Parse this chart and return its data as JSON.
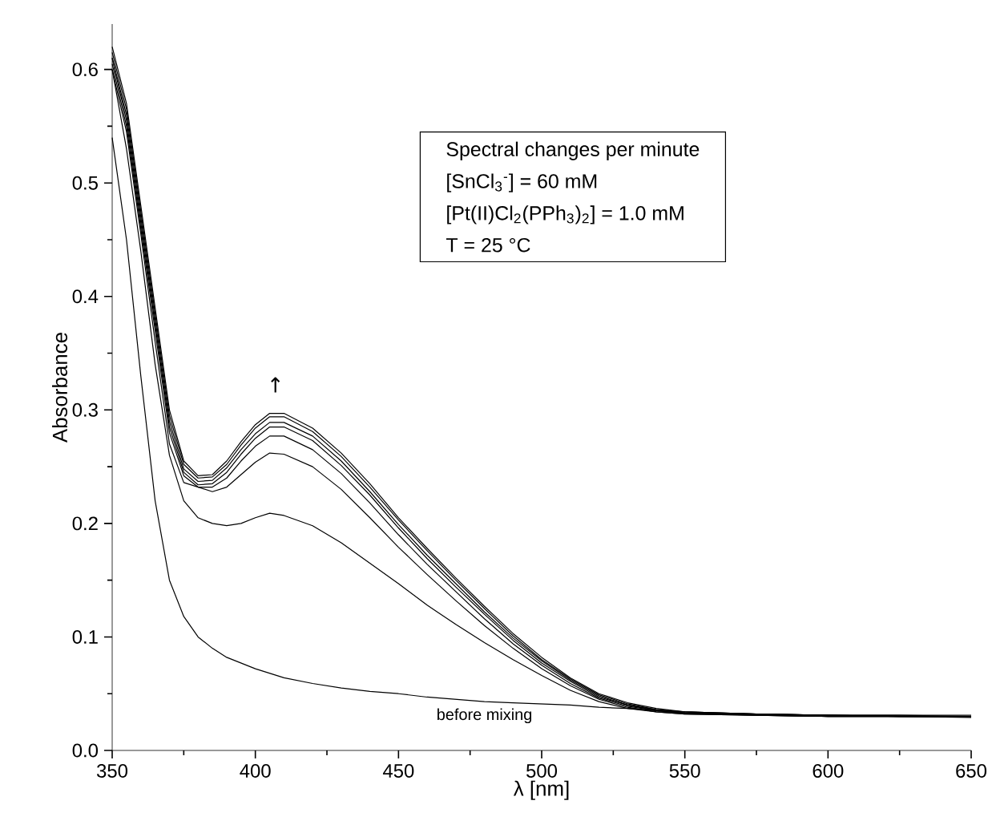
{
  "chart_data": {
    "type": "line",
    "xlabel": "λ [nm]",
    "ylabel": "Absorbance",
    "x": [
      350,
      355,
      360,
      365,
      370,
      375,
      380,
      385,
      390,
      395,
      400,
      405,
      410,
      420,
      430,
      440,
      450,
      460,
      470,
      480,
      490,
      500,
      510,
      520,
      530,
      540,
      550,
      575,
      600,
      625,
      650
    ],
    "series": [
      {
        "color": "#000000",
        "values": [
          0.62,
          0.57,
          0.48,
          0.39,
          0.3,
          0.255,
          0.242,
          0.243,
          0.255,
          0.272,
          0.287,
          0.297,
          0.297,
          0.284,
          0.262,
          0.235,
          0.205,
          0.178,
          0.152,
          0.127,
          0.103,
          0.082,
          0.064,
          0.05,
          0.042,
          0.037,
          0.034,
          0.032,
          0.031,
          0.031,
          0.031
        ]
      },
      {
        "color": "#000000",
        "values": [
          0.615,
          0.565,
          0.475,
          0.385,
          0.295,
          0.252,
          0.24,
          0.241,
          0.252,
          0.269,
          0.284,
          0.294,
          0.294,
          0.281,
          0.259,
          0.232,
          0.203,
          0.176,
          0.15,
          0.125,
          0.101,
          0.08,
          0.063,
          0.049,
          0.041,
          0.036,
          0.034,
          0.032,
          0.031,
          0.031,
          0.03
        ]
      },
      {
        "color": "#000000",
        "values": [
          0.61,
          0.56,
          0.47,
          0.38,
          0.29,
          0.248,
          0.237,
          0.238,
          0.249,
          0.265,
          0.279,
          0.289,
          0.289,
          0.277,
          0.255,
          0.228,
          0.199,
          0.172,
          0.147,
          0.122,
          0.099,
          0.079,
          0.062,
          0.048,
          0.04,
          0.036,
          0.033,
          0.032,
          0.031,
          0.03,
          0.03
        ]
      },
      {
        "color": "#000000",
        "values": [
          0.61,
          0.555,
          0.465,
          0.375,
          0.285,
          0.245,
          0.234,
          0.235,
          0.245,
          0.261,
          0.275,
          0.285,
          0.285,
          0.273,
          0.251,
          0.225,
          0.196,
          0.169,
          0.144,
          0.12,
          0.097,
          0.077,
          0.061,
          0.047,
          0.04,
          0.035,
          0.033,
          0.032,
          0.031,
          0.03,
          0.03
        ]
      },
      {
        "color": "#000000",
        "values": [
          0.605,
          0.55,
          0.46,
          0.37,
          0.28,
          0.242,
          0.232,
          0.232,
          0.24,
          0.255,
          0.268,
          0.277,
          0.277,
          0.265,
          0.244,
          0.218,
          0.19,
          0.164,
          0.14,
          0.116,
          0.094,
          0.075,
          0.059,
          0.046,
          0.039,
          0.035,
          0.033,
          0.031,
          0.03,
          0.03,
          0.03
        ]
      },
      {
        "color": "#000000",
        "values": [
          0.6,
          0.545,
          0.455,
          0.36,
          0.27,
          0.236,
          0.232,
          0.228,
          0.232,
          0.243,
          0.254,
          0.262,
          0.261,
          0.25,
          0.23,
          0.205,
          0.179,
          0.155,
          0.132,
          0.11,
          0.09,
          0.072,
          0.057,
          0.045,
          0.038,
          0.034,
          0.032,
          0.031,
          0.03,
          0.03,
          0.03
        ]
      },
      {
        "color": "#000000",
        "values": [
          0.6,
          0.53,
          0.44,
          0.34,
          0.26,
          0.22,
          0.205,
          0.2,
          0.198,
          0.2,
          0.205,
          0.209,
          0.207,
          0.198,
          0.183,
          0.165,
          0.147,
          0.128,
          0.111,
          0.095,
          0.08,
          0.066,
          0.053,
          0.043,
          0.037,
          0.034,
          0.032,
          0.031,
          0.03,
          0.03,
          0.03
        ]
      },
      {
        "name": "before mixing",
        "color": "#000000",
        "values": [
          0.54,
          0.45,
          0.33,
          0.22,
          0.15,
          0.118,
          0.1,
          0.09,
          0.082,
          0.077,
          0.072,
          0.068,
          0.064,
          0.059,
          0.055,
          0.052,
          0.05,
          0.047,
          0.045,
          0.043,
          0.042,
          0.041,
          0.04,
          0.038,
          0.037,
          0.035,
          0.034,
          0.032,
          0.031,
          0.03,
          0.029
        ]
      }
    ],
    "xlim": [
      350,
      650
    ],
    "xticks": [
      350,
      {
        "value": 375,
        "label": null
      },
      400,
      {
        "value": 425,
        "label": null
      },
      450,
      {
        "value": 475,
        "label": null
      },
      500,
      {
        "value": 525,
        "label": null
      },
      550,
      {
        "value": 575,
        "label": null
      },
      600,
      {
        "value": 625,
        "label": null
      },
      650
    ],
    "ylim": [
      0,
      0.64
    ],
    "yticks": [
      {
        "value": 0,
        "label": "0.0"
      },
      {
        "value": 0.05,
        "label": null
      },
      0.1,
      {
        "value": 0.15,
        "label": null
      },
      0.2,
      {
        "value": 0.25,
        "label": null
      },
      0.3,
      {
        "value": 0.35,
        "label": null
      },
      0.4,
      {
        "value": 0.45,
        "label": null
      },
      0.5,
      {
        "value": 0.55,
        "label": null
      },
      0.6
    ],
    "annotations": [
      "Spectral changes per minute",
      "[SnCl$_{3}$$^{-}$] = 60 mM",
      "[Pt(II)Cl$_{2}$(PPh$_{3}$)$_{2}$] = 1.0 mM",
      "T = 25 °C",
      "↑"
    ]
  }
}
